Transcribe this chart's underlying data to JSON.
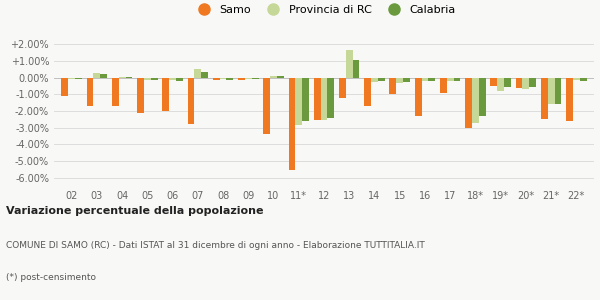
{
  "categories": [
    "02",
    "03",
    "04",
    "05",
    "06",
    "07",
    "08",
    "09",
    "10",
    "11*",
    "12",
    "13",
    "14",
    "15",
    "16",
    "17",
    "18*",
    "19*",
    "20*",
    "21*",
    "22*"
  ],
  "samo": [
    -1.1,
    -1.7,
    -1.7,
    -2.1,
    -2.0,
    -2.8,
    -0.15,
    -0.15,
    -3.35,
    -5.55,
    -2.55,
    -1.2,
    -1.7,
    -1.0,
    -2.3,
    -0.9,
    -3.0,
    -0.5,
    -0.6,
    -2.5,
    -2.6
  ],
  "provincia": [
    -0.05,
    0.3,
    0.05,
    -0.15,
    -0.15,
    0.55,
    -0.1,
    -0.1,
    0.1,
    -2.85,
    -2.55,
    1.65,
    -0.25,
    -0.3,
    -0.2,
    -0.2,
    -2.7,
    -0.8,
    -0.7,
    -1.6,
    -0.15
  ],
  "calabria": [
    -0.05,
    0.2,
    0.05,
    -0.15,
    -0.2,
    0.35,
    -0.15,
    -0.1,
    0.1,
    -2.6,
    -2.4,
    1.05,
    -0.2,
    -0.25,
    -0.2,
    -0.2,
    -2.3,
    -0.55,
    -0.55,
    -1.55,
    -0.2
  ],
  "samo_color": "#f07820",
  "provincia_color": "#c5d898",
  "calabria_color": "#6b9a3e",
  "bg_color": "#f8f8f6",
  "grid_color": "#dddddd",
  "ylim": [
    -6.5,
    2.5
  ],
  "yticks": [
    -6.0,
    -5.0,
    -4.0,
    -3.0,
    -2.0,
    -1.0,
    0.0,
    1.0,
    2.0
  ],
  "ytick_labels": [
    "-6.00%",
    "-5.00%",
    "-4.00%",
    "-3.00%",
    "-2.00%",
    "-1.00%",
    "0.00%",
    "+1.00%",
    "+2.00%"
  ],
  "title": "Variazione percentuale della popolazione",
  "subtitle": "COMUNE DI SAMO (RC) - Dati ISTAT al 31 dicembre di ogni anno - Elaborazione TUTTITALIA.IT",
  "footnote": "(*) post-censimento",
  "legend_samo": "Samo",
  "legend_provincia": "Provincia di RC",
  "legend_calabria": "Calabria",
  "bar_width": 0.27
}
